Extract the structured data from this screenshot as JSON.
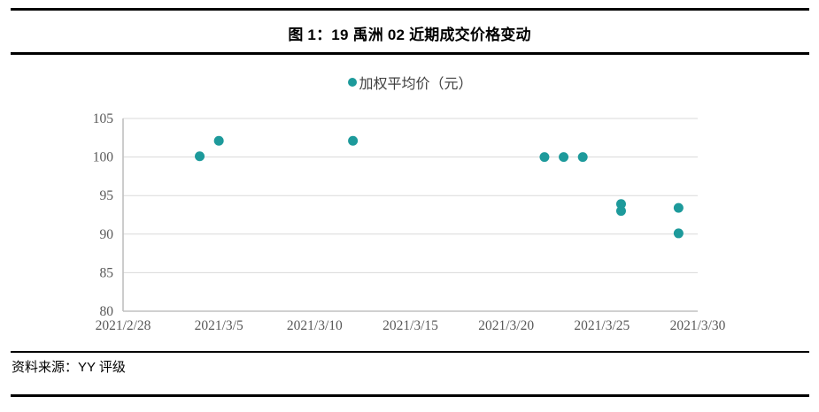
{
  "header": {
    "title": "图 1：19 禹洲 02 近期成交价格变动"
  },
  "footer": {
    "source": "资料来源：YY 评级"
  },
  "chart_data": {
    "type": "scatter",
    "title": "图 1：19 禹洲 02 近期成交价格变动",
    "legend": {
      "label": "加权平均价（元）",
      "position": "top-center"
    },
    "series": [
      {
        "name": "加权平均价（元）",
        "color": "#1d9a9b",
        "points": [
          {
            "x": "2021/3/4",
            "y": 100.1
          },
          {
            "x": "2021/3/5",
            "y": 102.1
          },
          {
            "x": "2021/3/12",
            "y": 102.1
          },
          {
            "x": "2021/3/22",
            "y": 100.0
          },
          {
            "x": "2021/3/23",
            "y": 100.0
          },
          {
            "x": "2021/3/24",
            "y": 100.0
          },
          {
            "x": "2021/3/26",
            "y": 93.9
          },
          {
            "x": "2021/3/26",
            "y": 93.0
          },
          {
            "x": "2021/3/29",
            "y": 93.4
          },
          {
            "x": "2021/3/29",
            "y": 90.1
          }
        ]
      }
    ],
    "x_axis": {
      "start": "2021/2/28",
      "end": "2021/3/30",
      "tick_interval_days": 5,
      "tick_labels": [
        "2021/2/28",
        "2021/3/5",
        "2021/3/10",
        "2021/3/15",
        "2021/3/20",
        "2021/3/25",
        "2021/3/30"
      ]
    },
    "y_axis": {
      "min": 80,
      "max": 105,
      "ticks": [
        105,
        100,
        95,
        90,
        85,
        80
      ]
    },
    "grid": "horizontal",
    "colors": {
      "point": "#1d9a9b",
      "gridline": "#dadada",
      "axis_line": "#c0c0c0",
      "axis_text": "#595959"
    }
  }
}
